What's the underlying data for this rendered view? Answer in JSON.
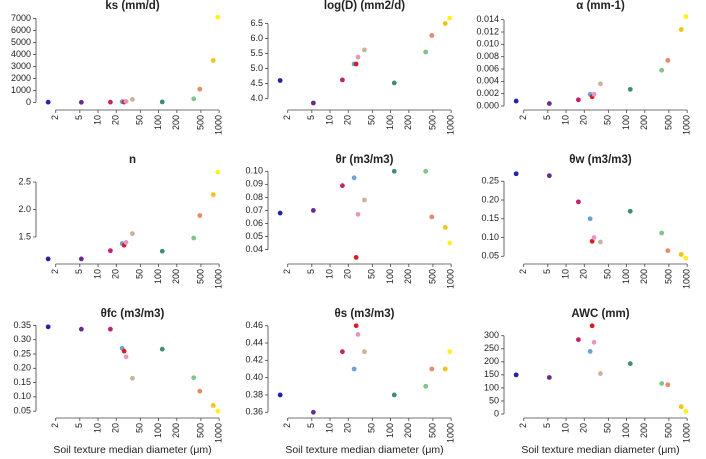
{
  "chart_data": [
    {
      "type": "scatter",
      "title": "ks (mm/d)",
      "xscale": "log",
      "x": [
        1.5,
        5.3,
        16,
        25,
        27,
        29,
        37,
        115,
        380,
        480,
        800,
        950
      ],
      "values": [
        20,
        10,
        20,
        60,
        30,
        80,
        250,
        40,
        300,
        1100,
        3500,
        7100
      ],
      "colors": [
        "#2323a8",
        "#6b2a90",
        "#c4226e",
        "#6fa0d6",
        "#d62020",
        "#e597c4",
        "#c8b498",
        "#3f8f6f",
        "#7cc48a",
        "#e8896a",
        "#f2c318",
        "#fff01f"
      ],
      "xlim": [
        1.1,
        1250
      ],
      "xticks": [
        2,
        5,
        10,
        20,
        50,
        100,
        200,
        500,
        1000
      ],
      "ylim": [
        -300,
        7200
      ],
      "yticks": [
        0,
        1000,
        2000,
        3000,
        4000,
        5000,
        6000,
        7000
      ]
    },
    {
      "type": "scatter",
      "title": "log(D) (mm2/d)",
      "xscale": "log",
      "x": [
        1.5,
        5.3,
        16,
        25,
        27,
        29,
        37,
        115,
        380,
        480,
        800,
        950
      ],
      "values": [
        4.6,
        3.85,
        4.62,
        5.15,
        5.15,
        5.38,
        5.62,
        4.52,
        5.55,
        6.1,
        6.5,
        6.68
      ],
      "colors": [
        "#2323a8",
        "#6b2a90",
        "#c4226e",
        "#6fa0d6",
        "#d62020",
        "#e597c4",
        "#c8b498",
        "#3f8f6f",
        "#7cc48a",
        "#e8896a",
        "#f2c318",
        "#fff01f"
      ],
      "xlim": [
        1.1,
        1250
      ],
      "xticks": [
        2,
        5,
        10,
        20,
        50,
        100,
        200,
        500,
        1000
      ],
      "ylim": [
        3.75,
        6.75
      ],
      "yticks": [
        {
          "value": 4,
          "label": "4.0"
        },
        4.5,
        {
          "value": 5,
          "label": "5.0"
        },
        5.5,
        {
          "value": 6,
          "label": "6.0"
        },
        6.5
      ]
    },
    {
      "type": "scatter",
      "title": "α (mm-1)",
      "xscale": "log",
      "x": [
        1.5,
        5.3,
        16,
        25,
        27,
        29,
        37,
        115,
        380,
        480,
        800,
        950
      ],
      "values": [
        0.0008,
        0.0004,
        0.001,
        0.0019,
        0.0015,
        0.0019,
        0.0036,
        0.0027,
        0.0058,
        0.0074,
        0.0124,
        0.0145
      ],
      "colors": [
        "#2323a8",
        "#6b2a90",
        "#c4226e",
        "#6fa0d6",
        "#d62020",
        "#e597c4",
        "#c8b498",
        "#3f8f6f",
        "#7cc48a",
        "#e8896a",
        "#f2c318",
        "#fff01f"
      ],
      "xlim": [
        1.1,
        1250
      ],
      "xticks": [
        2,
        5,
        10,
        20,
        50,
        100,
        200,
        500,
        1000
      ],
      "ylim": [
        0,
        0.0146
      ],
      "yticks": [
        {
          "value": 0,
          "label": "0.000"
        },
        0.002,
        0.004,
        0.006,
        0.008,
        {
          "value": 0.01,
          "label": "0.010"
        },
        0.012,
        0.014
      ]
    },
    {
      "type": "scatter",
      "title": "n",
      "xscale": "log",
      "x": [
        1.5,
        5.3,
        16,
        25,
        27,
        29,
        37,
        115,
        380,
        480,
        800,
        950
      ],
      "values": [
        1.1,
        1.1,
        1.25,
        1.38,
        1.35,
        1.4,
        1.56,
        1.24,
        1.48,
        1.89,
        2.27,
        2.68
      ],
      "colors": [
        "#2323a8",
        "#6b2a90",
        "#c4226e",
        "#6fa0d6",
        "#d62020",
        "#e597c4",
        "#c8b498",
        "#3f8f6f",
        "#7cc48a",
        "#e8896a",
        "#f2c318",
        "#fff01f"
      ],
      "xlim": [
        1.1,
        1250
      ],
      "xticks": [
        2,
        5,
        10,
        20,
        50,
        100,
        200,
        500,
        1000
      ],
      "ylim": [
        1.08,
        2.72
      ],
      "yticks": [
        1.5,
        {
          "value": 2,
          "label": "2.0"
        },
        2.5
      ]
    },
    {
      "type": "scatter",
      "title": "θr (m3/m3)",
      "xscale": "log",
      "x": [
        1.5,
        5.3,
        16,
        25,
        27,
        29,
        37,
        115,
        380,
        480,
        800,
        950
      ],
      "values": [
        0.068,
        0.07,
        0.089,
        0.095,
        0.034,
        0.067,
        0.078,
        0.1,
        0.1,
        0.065,
        0.057,
        0.045
      ],
      "colors": [
        "#2323a8",
        "#6b2a90",
        "#c4226e",
        "#6fa0d6",
        "#d62020",
        "#e597c4",
        "#c8b498",
        "#3f8f6f",
        "#7cc48a",
        "#e8896a",
        "#f2c318",
        "#fff01f"
      ],
      "xlim": [
        1.1,
        1250
      ],
      "xticks": [
        2,
        5,
        10,
        20,
        50,
        100,
        200,
        500,
        1000
      ],
      "ylim": [
        0.032,
        0.101
      ],
      "yticks": [
        0.04,
        0.05,
        0.06,
        0.07,
        0.08,
        0.09,
        {
          "value": 0.1,
          "label": "0.10"
        }
      ]
    },
    {
      "type": "scatter",
      "title": "θw (m3/m3)",
      "xscale": "log",
      "x": [
        1.5,
        5.3,
        16,
        25,
        27,
        29,
        37,
        115,
        380,
        480,
        800,
        950
      ],
      "values": [
        0.27,
        0.265,
        0.195,
        0.15,
        0.09,
        0.1,
        0.088,
        0.17,
        0.112,
        0.065,
        0.055,
        0.045
      ],
      "colors": [
        "#2323a8",
        "#6b2a90",
        "#c4226e",
        "#6fa0d6",
        "#d62020",
        "#e597c4",
        "#c8b498",
        "#3f8f6f",
        "#7cc48a",
        "#e8896a",
        "#f2c318",
        "#fff01f"
      ],
      "xlim": [
        1.1,
        1250
      ],
      "xticks": [
        2,
        5,
        10,
        20,
        50,
        100,
        200,
        500,
        1000
      ],
      "ylim": [
        0.04,
        0.28
      ],
      "yticks": [
        0.05,
        {
          "value": 0.1,
          "label": "0.10"
        },
        0.15,
        {
          "value": 0.2,
          "label": "0.20"
        },
        0.25
      ]
    },
    {
      "type": "scatter",
      "title": "θfc (m3/m3)",
      "xscale": "log",
      "x": [
        1.5,
        5.3,
        16,
        25,
        27,
        29,
        37,
        115,
        380,
        480,
        800,
        950
      ],
      "values": [
        0.345,
        0.337,
        0.337,
        0.27,
        0.26,
        0.24,
        0.165,
        0.267,
        0.167,
        0.12,
        0.07,
        0.05
      ],
      "colors": [
        "#2323a8",
        "#6b2a90",
        "#c4226e",
        "#6fa0d6",
        "#d62020",
        "#e597c4",
        "#c8b498",
        "#3f8f6f",
        "#7cc48a",
        "#e8896a",
        "#f2c318",
        "#fff01f"
      ],
      "xlim": [
        1.1,
        1250
      ],
      "xticks": [
        2,
        5,
        10,
        20,
        50,
        100,
        200,
        500,
        1000
      ],
      "x_label": "Soil texture median diameter (μm)",
      "ylim": [
        0.04,
        0.355
      ],
      "yticks": [
        0.05,
        {
          "value": 0.1,
          "label": "0.10"
        },
        0.15,
        {
          "value": 0.2,
          "label": "0.20"
        },
        0.25,
        {
          "value": 0.3,
          "label": "0.30"
        },
        0.35
      ]
    },
    {
      "type": "scatter",
      "title": "θs (m3/m3)",
      "xscale": "log",
      "x": [
        1.5,
        5.3,
        16,
        25,
        27,
        29,
        37,
        115,
        380,
        480,
        800,
        950
      ],
      "values": [
        0.38,
        0.36,
        0.43,
        0.41,
        0.46,
        0.45,
        0.43,
        0.38,
        0.39,
        0.41,
        0.41,
        0.43
      ],
      "colors": [
        "#2323a8",
        "#6b2a90",
        "#c4226e",
        "#6fa0d6",
        "#d62020",
        "#e597c4",
        "#c8b498",
        "#3f8f6f",
        "#7cc48a",
        "#e8896a",
        "#f2c318",
        "#fff01f"
      ],
      "xlim": [
        1.1,
        1250
      ],
      "xticks": [
        2,
        5,
        10,
        20,
        50,
        100,
        200,
        500,
        1000
      ],
      "x_label": "Soil texture median diameter (μm)",
      "ylim": [
        0.358,
        0.462
      ],
      "yticks": [
        0.36,
        0.38,
        {
          "value": 0.4,
          "label": "0.40"
        },
        0.42,
        0.44,
        0.46
      ]
    },
    {
      "type": "scatter",
      "title": "AWC (mm)",
      "xscale": "log",
      "x": [
        1.5,
        5.3,
        16,
        25,
        27,
        29,
        37,
        115,
        380,
        480,
        800,
        950
      ],
      "values": [
        150,
        140,
        285,
        240,
        338,
        275,
        155,
        193,
        117,
        112,
        28,
        10
      ],
      "colors": [
        "#2323a8",
        "#6b2a90",
        "#c4226e",
        "#6fa0d6",
        "#d62020",
        "#e597c4",
        "#c8b498",
        "#3f8f6f",
        "#7cc48a",
        "#e8896a",
        "#f2c318",
        "#fff01f"
      ],
      "xlim": [
        1.1,
        1250
      ],
      "xticks": [
        2,
        5,
        10,
        20,
        50,
        100,
        200,
        500,
        1000
      ],
      "x_label": "Soil texture median diameter (μm)",
      "ylim": [
        0,
        345
      ],
      "yticks": [
        0,
        50,
        100,
        150,
        200,
        250,
        300
      ]
    }
  ]
}
